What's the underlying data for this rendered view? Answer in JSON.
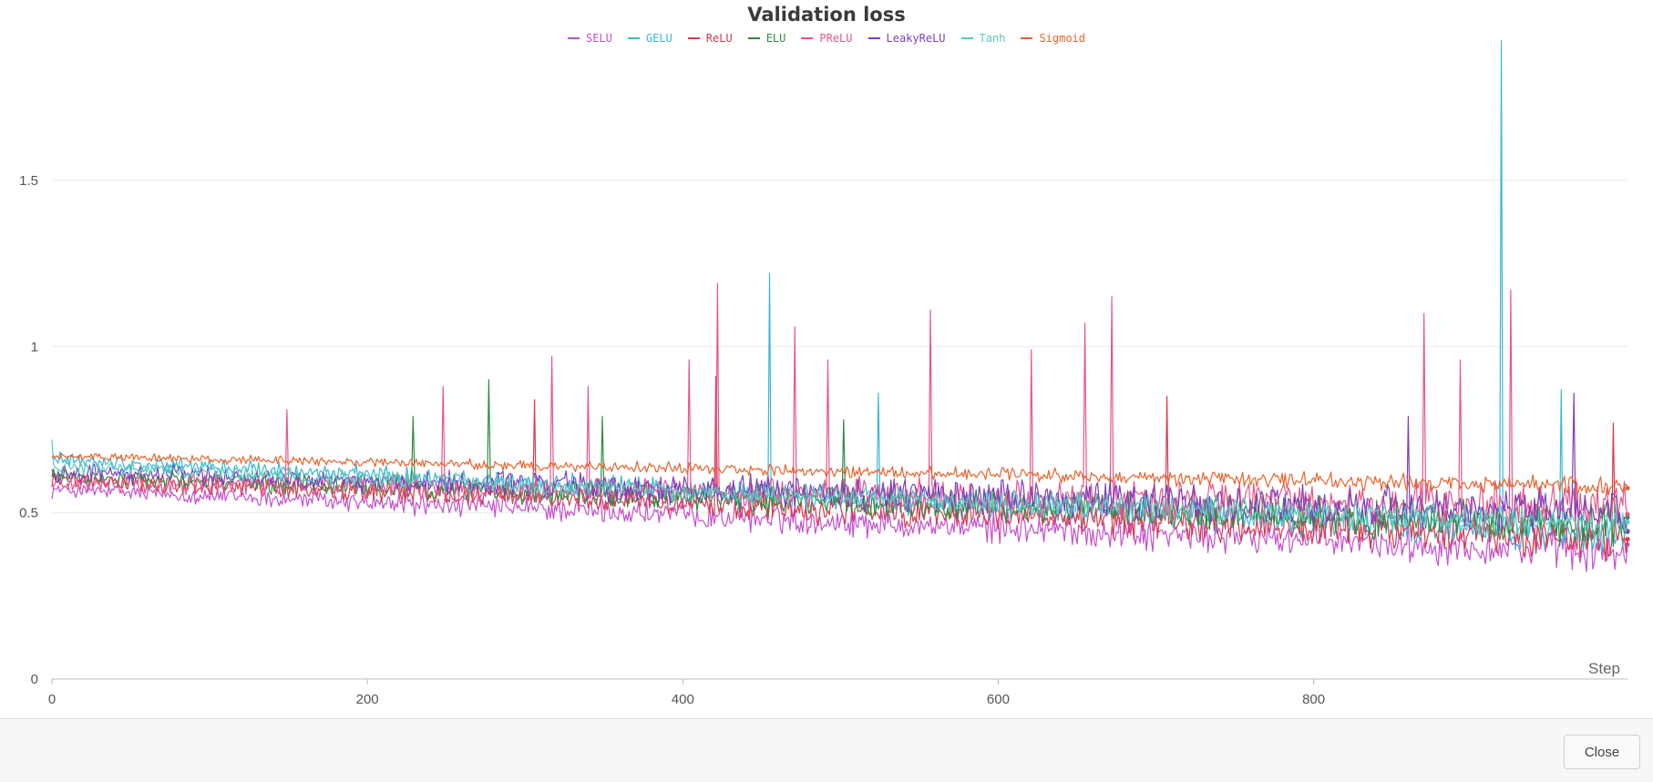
{
  "chart_data": {
    "type": "line",
    "title": "Validation loss",
    "xlabel": "Step",
    "ylabel": "",
    "xlim": [
      0,
      999
    ],
    "ylim": [
      0,
      1.9
    ],
    "x_ticks": [
      0,
      200,
      400,
      600,
      800
    ],
    "y_ticks": [
      0,
      0.5,
      1,
      1.5
    ],
    "y_tick_labels": [
      "0",
      "0.5",
      "1",
      "1.5"
    ],
    "grid": true,
    "legend_position": "top-center",
    "series": [
      {
        "name": "SELU",
        "color": "#c44fcf",
        "start": 0.57,
        "end": 0.38,
        "noise": 0.05,
        "spikes": []
      },
      {
        "name": "GELU",
        "color": "#3ab6d6",
        "start": 0.66,
        "end": 0.43,
        "noise": 0.045,
        "spikes": [
          [
            455,
            1.22
          ],
          [
            524,
            0.86
          ],
          [
            919,
            1.92
          ],
          [
            957,
            0.87
          ]
        ]
      },
      {
        "name": "ReLU",
        "color": "#d93b4d",
        "start": 0.6,
        "end": 0.42,
        "noise": 0.05,
        "spikes": [
          [
            306,
            0.84
          ],
          [
            421,
            0.91
          ],
          [
            707,
            0.85
          ],
          [
            990,
            0.77
          ]
        ]
      },
      {
        "name": "ELU",
        "color": "#2e8b40",
        "start": 0.61,
        "end": 0.46,
        "noise": 0.05,
        "spikes": [
          [
            229,
            0.79
          ],
          [
            277,
            0.9
          ],
          [
            349,
            0.79
          ],
          [
            502,
            0.78
          ]
        ]
      },
      {
        "name": "PReLU",
        "color": "#e8558c",
        "start": 0.59,
        "end": 0.52,
        "noise": 0.055,
        "spikes": [
          [
            149,
            0.81
          ],
          [
            248,
            0.88
          ],
          [
            317,
            0.97
          ],
          [
            340,
            0.88
          ],
          [
            404,
            0.96
          ],
          [
            422,
            1.19
          ],
          [
            471,
            1.06
          ],
          [
            492,
            0.96
          ],
          [
            557,
            1.11
          ],
          [
            621,
            0.99
          ],
          [
            655,
            1.07
          ],
          [
            672,
            1.15
          ],
          [
            870,
            1.1
          ],
          [
            893,
            0.96
          ],
          [
            925,
            1.17
          ]
        ]
      },
      {
        "name": "LeakyReLU",
        "color": "#7b3fbf",
        "start": 0.62,
        "end": 0.5,
        "noise": 0.055,
        "spikes": [
          [
            860,
            0.79
          ],
          [
            965,
            0.86
          ]
        ]
      },
      {
        "name": "Tanh",
        "color": "#5cc8c2",
        "start": 0.64,
        "end": 0.46,
        "noise": 0.04,
        "spikes": [
          [
            0,
            0.72
          ]
        ]
      },
      {
        "name": "Sigmoid",
        "color": "#e8642c",
        "start": 0.67,
        "end": 0.58,
        "noise": 0.022,
        "spikes": []
      }
    ]
  },
  "footer": {
    "close_label": "Close"
  }
}
